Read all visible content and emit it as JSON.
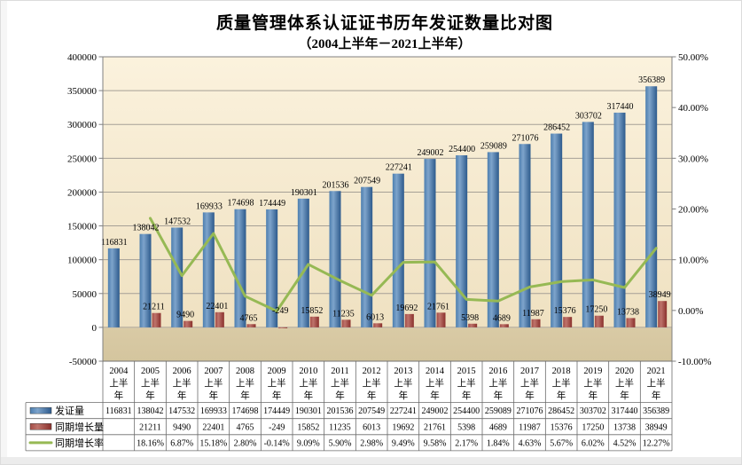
{
  "chart_data": {
    "type": "bar+line combo with data table",
    "title": "质量管理体系认证证书历年发证数量比对图",
    "subtitle": "（2004上半年－2021上半年）",
    "categories": [
      "2004",
      "2005",
      "2006",
      "2007",
      "2008",
      "2009",
      "2010",
      "2011",
      "2012",
      "2013",
      "2014",
      "2015",
      "2016",
      "2017",
      "2018",
      "2019",
      "2020",
      "2021"
    ],
    "category_suffix_lines": [
      "上半",
      "年"
    ],
    "series": [
      {
        "name": "发证量",
        "type": "bar",
        "values": [
          116831,
          138042,
          147532,
          169933,
          174698,
          174449,
          190301,
          201536,
          207549,
          227241,
          249002,
          254400,
          259089,
          271076,
          286452,
          303702,
          317440,
          356389
        ]
      },
      {
        "name": "同期增长量",
        "type": "bar",
        "values": [
          null,
          21211,
          9490,
          22401,
          4765,
          -249,
          15852,
          11235,
          6013,
          19692,
          21761,
          5398,
          4689,
          11987,
          15376,
          17250,
          13738,
          38949
        ]
      },
      {
        "name": "同期增长率",
        "type": "line",
        "unit": "%",
        "values": [
          null,
          18.16,
          6.87,
          15.18,
          2.8,
          -0.14,
          9.09,
          5.9,
          2.98,
          9.49,
          9.58,
          2.17,
          1.84,
          4.63,
          5.67,
          6.02,
          4.52,
          12.27
        ],
        "table_labels": [
          "",
          "18.16%",
          "6.87%",
          "15.18%",
          "2.80%",
          "-0.14%",
          "9.09%",
          "5.90%",
          "2.98%",
          "9.49%",
          "9.58%",
          "2.17%",
          "1.84%",
          "4.63%",
          "5.67%",
          "6.02%",
          "4.52%",
          "12.27%"
        ]
      }
    ],
    "left_axis": {
      "min": -50000,
      "max": 400000,
      "step": 50000,
      "ticks": [
        400000,
        350000,
        300000,
        250000,
        200000,
        150000,
        100000,
        50000,
        0,
        -50000
      ]
    },
    "right_axis": {
      "values": [
        50,
        40,
        30,
        20,
        10,
        0,
        -10
      ],
      "labels": [
        "50.00%",
        "40.00%",
        "30.00%",
        "20.00%",
        "10.00%",
        "0.00%",
        "-10.00%"
      ]
    },
    "legend_position": "data-table-left",
    "grid": true,
    "colors": {
      "issued_bar": "#3F6FA3",
      "issued_bar_light": "#7EA4CB",
      "issued_bar_dark": "#2D5A8C",
      "growth_bar": "#A3423C",
      "growth_bar_light": "#BE736B",
      "growth_bar_dark": "#8A302C",
      "rate_line": "#96B954",
      "plot_bg_top": "#FBF2DD",
      "plot_bg_mid": "#EFE1C1",
      "plot_below_zero": "#D9CAA5",
      "gridline": "#A6A096",
      "plot_border": "#808080",
      "table_border": "#6b6b6b",
      "text": "#000000"
    }
  }
}
